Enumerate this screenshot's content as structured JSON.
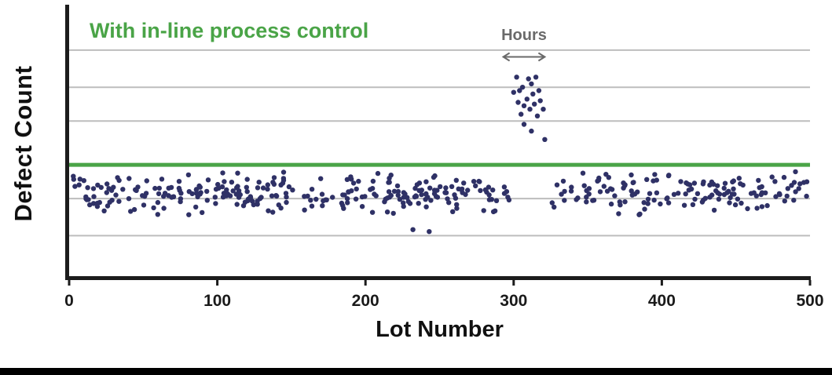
{
  "page": {
    "background": "#ffffff",
    "bottom_bar_color": "#000000",
    "axis_color": "#1c1c1c"
  },
  "chart_data": {
    "type": "scatter",
    "title": "",
    "annotation": "With in-line process control",
    "annotation_color": "#4aa447",
    "xlabel": "Lot Number",
    "ylabel": "Defect Count",
    "xlim": [
      0,
      500
    ],
    "xticks": [
      0,
      100,
      200,
      300,
      400,
      500
    ],
    "ylim": [
      0,
      8
    ],
    "y_tick_labels_shown": false,
    "gridlines_y": [
      1.2,
      2.3,
      4.6,
      5.6,
      6.7
    ],
    "grid_color": "#bdbdbd",
    "point_color": "#2f3166",
    "point_radius": 3.2,
    "control_line": {
      "y": 3.3,
      "color": "#4aa447",
      "width": 5
    },
    "hours_annotation": {
      "label": "Hours",
      "x_center": 307,
      "label_y": 7.0,
      "arrow_x1": 293,
      "arrow_x2": 321,
      "arrow_y": 6.5,
      "color": "#6a6a6a"
    },
    "baseline": {
      "seed": 42,
      "count": 430,
      "x_min": 2,
      "x_max": 498,
      "gap": [
        297,
        322
      ],
      "y_mean": 2.45,
      "y_half_range": 0.62,
      "y_clip": [
        1.82,
        3.12
      ]
    },
    "outliers": [
      [
        232,
        1.38
      ],
      [
        243,
        1.32
      ]
    ],
    "excursion_points": [
      [
        300,
        5.45
      ],
      [
        302,
        5.9
      ],
      [
        303,
        5.15
      ],
      [
        304,
        5.5
      ],
      [
        305,
        4.8
      ],
      [
        306,
        5.6
      ],
      [
        307,
        5.05
      ],
      [
        307,
        4.5
      ],
      [
        309,
        5.25
      ],
      [
        310,
        5.85
      ],
      [
        311,
        4.95
      ],
      [
        312,
        5.7
      ],
      [
        312,
        4.3
      ],
      [
        313,
        5.4
      ],
      [
        314,
        5.1
      ],
      [
        315,
        5.9
      ],
      [
        316,
        4.75
      ],
      [
        317,
        5.5
      ],
      [
        318,
        5.2
      ],
      [
        320,
        4.95
      ],
      [
        321,
        4.05
      ]
    ]
  }
}
